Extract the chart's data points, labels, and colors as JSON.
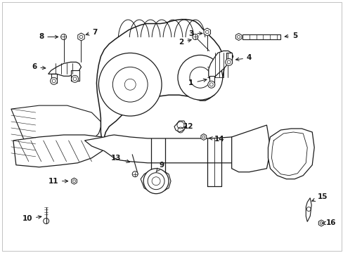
{
  "bg_color": "#ffffff",
  "line_color": "#1a1a1a",
  "fig_width": 4.89,
  "fig_height": 3.6,
  "dpi": 100,
  "label_fontsize": 7.5,
  "border_color": "#cccccc"
}
